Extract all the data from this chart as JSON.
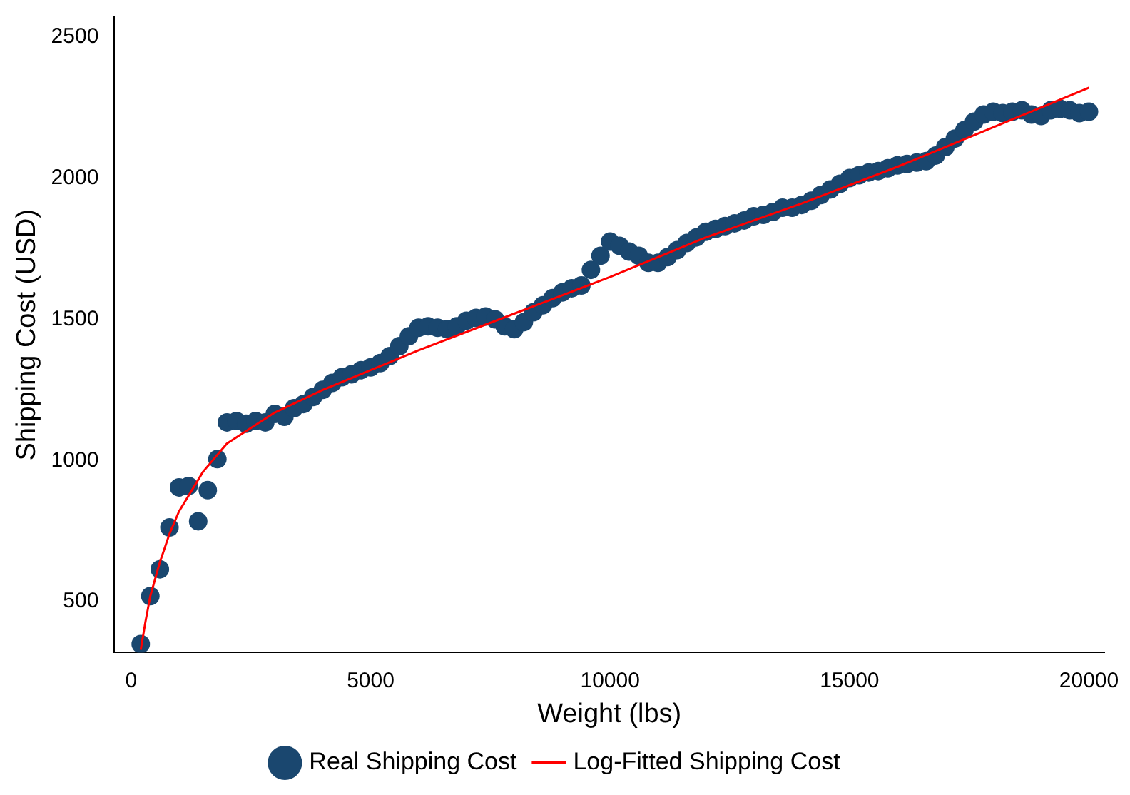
{
  "chart_data": {
    "type": "scatter",
    "xlabel": "Weight (lbs)",
    "ylabel": "Shipping Cost (USD)",
    "xlim": [
      -350,
      20320
    ],
    "ylim": [
      320,
      2570
    ],
    "xticks": [
      0,
      5000,
      10000,
      15000,
      20000
    ],
    "yticks": [
      500,
      1000,
      1500,
      2000,
      2500
    ],
    "grid": false,
    "legend": "bottom",
    "marker": "circle",
    "series": [
      {
        "name": "Real Shipping Cost",
        "color": "#1a476f",
        "x": [
          200,
          400,
          600,
          800,
          1000,
          1200,
          1400,
          1600,
          1800,
          2000,
          2200,
          2400,
          2600,
          2800,
          3000,
          3200,
          3400,
          3600,
          3800,
          4000,
          4200,
          4400,
          4600,
          4800,
          5000,
          5200,
          5400,
          5600,
          5800,
          6000,
          6200,
          6400,
          6600,
          6800,
          7000,
          7200,
          7400,
          7600,
          7800,
          8000,
          8200,
          8400,
          8600,
          8800,
          9000,
          9200,
          9400,
          9600,
          9800,
          10000,
          10200,
          10400,
          10600,
          10800,
          11000,
          11200,
          11400,
          11600,
          11800,
          12000,
          12200,
          12400,
          12600,
          12800,
          13000,
          13200,
          13400,
          13600,
          13800,
          14000,
          14200,
          14400,
          14600,
          14800,
          15000,
          15200,
          15400,
          15600,
          15800,
          16000,
          16200,
          16400,
          16600,
          16800,
          17000,
          17200,
          17400,
          17600,
          17800,
          18000,
          18200,
          18400,
          18600,
          18800,
          19000,
          19200,
          19400,
          19600,
          19800,
          20000
        ],
        "values": [
          350,
          520,
          615,
          763,
          905,
          910,
          785,
          895,
          1005,
          1135,
          1140,
          1130,
          1140,
          1135,
          1165,
          1155,
          1185,
          1200,
          1225,
          1250,
          1275,
          1295,
          1305,
          1320,
          1330,
          1345,
          1370,
          1405,
          1440,
          1470,
          1475,
          1470,
          1465,
          1475,
          1495,
          1505,
          1510,
          1500,
          1475,
          1465,
          1490,
          1525,
          1550,
          1575,
          1595,
          1610,
          1620,
          1675,
          1725,
          1775,
          1760,
          1740,
          1725,
          1700,
          1700,
          1720,
          1745,
          1770,
          1790,
          1810,
          1820,
          1830,
          1840,
          1850,
          1865,
          1870,
          1880,
          1895,
          1895,
          1905,
          1920,
          1940,
          1960,
          1980,
          2000,
          2010,
          2020,
          2025,
          2035,
          2045,
          2050,
          2055,
          2060,
          2080,
          2110,
          2140,
          2170,
          2200,
          2225,
          2235,
          2230,
          2235,
          2240,
          2225,
          2220,
          2240,
          2245,
          2240,
          2230,
          2235
        ]
      },
      {
        "name": "Log-Fitted Shipping Cost",
        "type": "line",
        "color": "#ff0000",
        "marker": "none",
        "x": [
          200,
          300,
          400,
          600,
          800,
          1000,
          1500,
          2000,
          3000,
          4000,
          5000,
          6000,
          8000,
          10000,
          12000,
          14000,
          16000,
          18000,
          20000
        ],
        "values": [
          330,
          430,
          520,
          640,
          740,
          820,
          960,
          1060,
          1170,
          1250,
          1320,
          1390,
          1520,
          1650,
          1790,
          1910,
          2040,
          2180,
          2320
        ]
      }
    ]
  }
}
